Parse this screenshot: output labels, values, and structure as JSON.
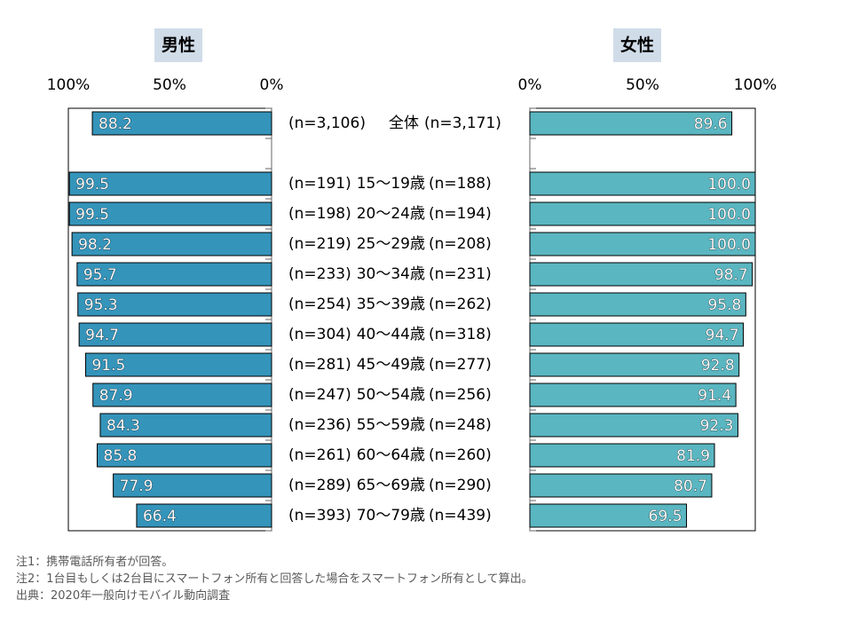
{
  "chart_data": {
    "type": "bar",
    "orientation": "horizontal-butterfly",
    "title": "",
    "xlabel": "",
    "ylabel": "",
    "xlim": [
      0,
      100
    ],
    "tick_labels": [
      "0%",
      "50%",
      "100%"
    ],
    "grid": false,
    "categories": [
      "全体",
      "15～19歳",
      "20～24歳",
      "25～29歳",
      "30～34歳",
      "35～39歳",
      "40～44歳",
      "45～49歳",
      "50～54歳",
      "55～59歳",
      "60～64歳",
      "65～69歳",
      "70～79歳"
    ],
    "series": [
      {
        "name": "男性",
        "color": "#3594ba",
        "values": [
          88.2,
          99.5,
          99.5,
          98.2,
          95.7,
          95.3,
          94.7,
          91.5,
          87.9,
          84.3,
          85.8,
          77.9,
          66.4
        ],
        "value_labels": [
          "88.2",
          "99.5",
          "99.5",
          "98.2",
          "95.7",
          "95.3",
          "94.7",
          "91.5",
          "87.9",
          "84.3",
          "85.8",
          "77.9",
          "66.4"
        ],
        "n_labels": [
          "(n=3,106)",
          "(n=191)",
          "(n=198)",
          "(n=219)",
          "(n=233)",
          "(n=254)",
          "(n=304)",
          "(n=281)",
          "(n=247)",
          "(n=236)",
          "(n=261)",
          "(n=289)",
          "(n=393)"
        ]
      },
      {
        "name": "女性",
        "color": "#5ab6c1",
        "values": [
          89.6,
          100.0,
          100.0,
          100.0,
          98.7,
          95.8,
          94.7,
          92.8,
          91.4,
          92.3,
          81.9,
          80.7,
          69.5
        ],
        "value_labels": [
          "89.6",
          "100.0",
          "100.0",
          "100.0",
          "98.7",
          "95.8",
          "94.7",
          "92.8",
          "91.4",
          "92.3",
          "81.9",
          "80.7",
          "69.5"
        ],
        "n_labels": [
          "(n=3,171)",
          "(n=188)",
          "(n=194)",
          "(n=208)",
          "(n=231)",
          "(n=262)",
          "(n=318)",
          "(n=277)",
          "(n=256)",
          "(n=248)",
          "(n=260)",
          "(n=290)",
          "(n=439)"
        ]
      }
    ]
  },
  "panels": {
    "male": {
      "title": "男性",
      "ticks": [
        "100%",
        "50%",
        "0%"
      ]
    },
    "female": {
      "title": "女性",
      "ticks": [
        "0%",
        "50%",
        "100%"
      ]
    }
  },
  "notes": [
    "注1：携帯電話所有者が回答。",
    "注2：1台目もしくは2台目にスマートフォン所有と回答した場合をスマートフォン所有として算出。",
    "出典：2020年一般向けモバイル動向調査"
  ]
}
